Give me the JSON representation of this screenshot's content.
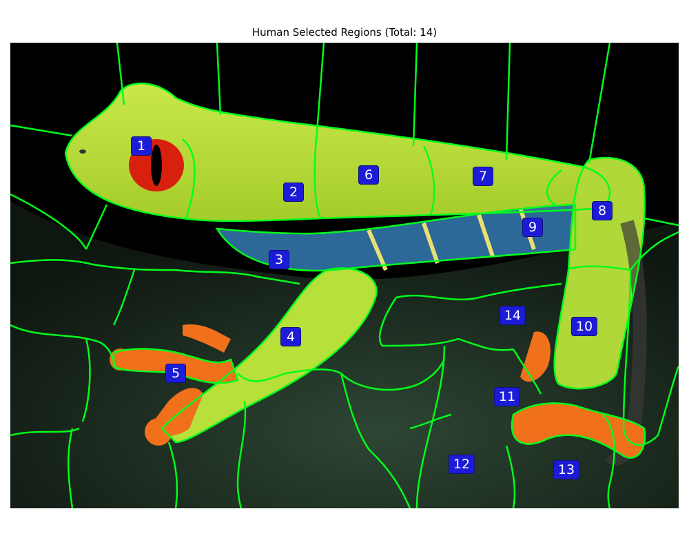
{
  "figure": {
    "title": "Human Selected Regions (Total: 14)"
  },
  "colors": {
    "background": "#000000",
    "boundary": "#00ff1a",
    "label_bg": "#1c1cd8",
    "label_text": "#ffffff",
    "frog_skin": "#b8e03a",
    "frog_side": "#2f6fa0",
    "toe": "#f0701c",
    "eye": "#d8200e",
    "leaf": "#1c2a1e"
  },
  "regions": [
    {
      "id": "1"
    },
    {
      "id": "2"
    },
    {
      "id": "3"
    },
    {
      "id": "4"
    },
    {
      "id": "5"
    },
    {
      "id": "6"
    },
    {
      "id": "7"
    },
    {
      "id": "8"
    },
    {
      "id": "9"
    },
    {
      "id": "10"
    },
    {
      "id": "11"
    },
    {
      "id": "12"
    },
    {
      "id": "13"
    },
    {
      "id": "14"
    }
  ]
}
